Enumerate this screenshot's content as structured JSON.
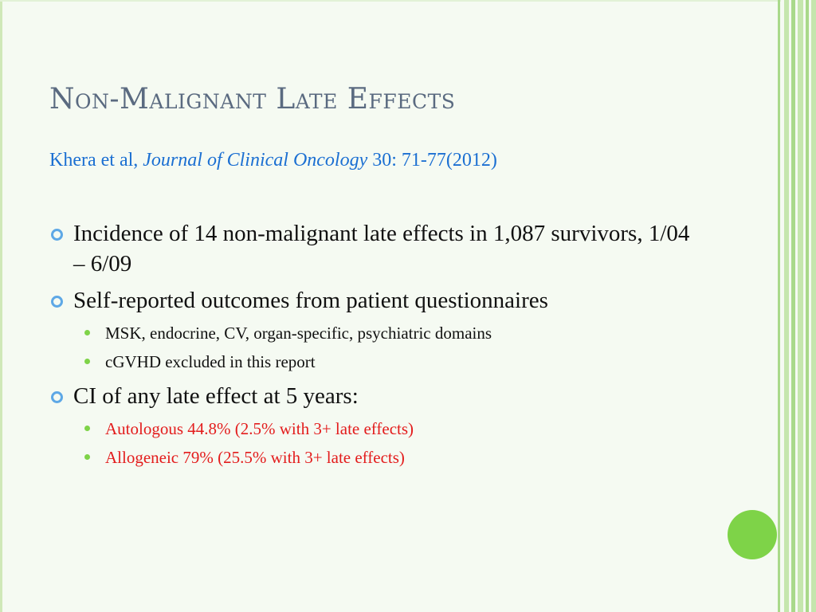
{
  "slide": {
    "title": "Non-Malignant Late Effects",
    "citation": {
      "authors": "Khera et al,",
      "journal": "Journal of Clinical Oncology",
      "ref": "30: 71-77(2012)"
    },
    "bullets": [
      {
        "text": "Incidence of 14 non-malignant late effects in 1,087 survivors, 1/04 – 6/09",
        "sub": []
      },
      {
        "text": "Self-reported outcomes from patient questionnaires",
        "sub": [
          "MSK, endocrine, CV, organ-specific, psychiatric domains",
          "cGVHD excluded in this report"
        ]
      },
      {
        "text": "CI of any late effect at 5 years:",
        "sub": [
          "Autologous 44.8% (2.5% with 3+ late effects)",
          "Allogeneic 79% (25.5% with 3+ late effects)"
        ]
      }
    ]
  },
  "colors": {
    "title": "#5a6a80",
    "citation": "#1b6fd2",
    "highlight_red": "#e31c1c",
    "accent_green": "#7ed348",
    "bullet_blue": "#5ea8e6"
  }
}
